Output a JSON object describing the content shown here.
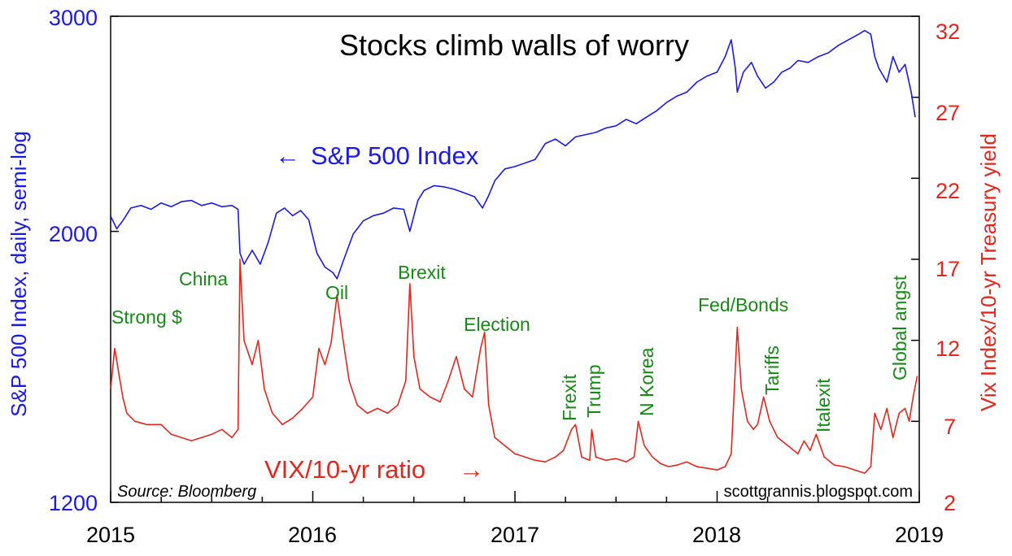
{
  "chart_data": {
    "type": "line",
    "title": "Stocks climb walls of worry",
    "xlabel": "",
    "x_ticks": [
      "2015",
      "2016",
      "2017",
      "2018",
      "2019"
    ],
    "x_range": [
      2015,
      2019
    ],
    "left_axis": {
      "label": "S&P 500 Index, daily, semi-log",
      "scale": "log",
      "range": [
        1200,
        3000
      ],
      "ticks": [
        "3000",
        "2000",
        "1200"
      ],
      "tick_values": [
        3000,
        2000,
        1200
      ]
    },
    "right_axis": {
      "label": "Vix Index/10-yr Treasury yield",
      "scale": "linear",
      "range": [
        2,
        32
      ],
      "ticks": [
        "32",
        "27",
        "22",
        "17",
        "12",
        "7",
        "2"
      ],
      "tick_values": [
        32,
        27,
        22,
        17,
        12,
        7,
        2
      ]
    },
    "series": [
      {
        "name": "S&P 500 Index",
        "label": "S&P 500 Index",
        "arrow": "←",
        "axis": "left",
        "color": "#1a1ae6",
        "points": [
          [
            2015.0,
            2058
          ],
          [
            2015.03,
            2010
          ],
          [
            2015.06,
            2040
          ],
          [
            2015.1,
            2090
          ],
          [
            2015.15,
            2100
          ],
          [
            2015.2,
            2085
          ],
          [
            2015.25,
            2110
          ],
          [
            2015.3,
            2095
          ],
          [
            2015.35,
            2115
          ],
          [
            2015.4,
            2120
          ],
          [
            2015.45,
            2100
          ],
          [
            2015.5,
            2110
          ],
          [
            2015.55,
            2095
          ],
          [
            2015.6,
            2100
          ],
          [
            2015.63,
            2085
          ],
          [
            2015.64,
            1920
          ],
          [
            2015.66,
            1880
          ],
          [
            2015.7,
            1930
          ],
          [
            2015.74,
            1880
          ],
          [
            2015.78,
            1960
          ],
          [
            2015.82,
            2070
          ],
          [
            2015.86,
            2090
          ],
          [
            2015.9,
            2060
          ],
          [
            2015.94,
            2080
          ],
          [
            2015.98,
            2044
          ],
          [
            2016.02,
            1920
          ],
          [
            2016.06,
            1870
          ],
          [
            2016.1,
            1850
          ],
          [
            2016.12,
            1829
          ],
          [
            2016.15,
            1890
          ],
          [
            2016.2,
            1990
          ],
          [
            2016.25,
            2040
          ],
          [
            2016.3,
            2060
          ],
          [
            2016.35,
            2070
          ],
          [
            2016.4,
            2090
          ],
          [
            2016.45,
            2085
          ],
          [
            2016.48,
            2000
          ],
          [
            2016.52,
            2120
          ],
          [
            2016.55,
            2160
          ],
          [
            2016.6,
            2180
          ],
          [
            2016.65,
            2175
          ],
          [
            2016.7,
            2165
          ],
          [
            2016.75,
            2150
          ],
          [
            2016.8,
            2135
          ],
          [
            2016.84,
            2090
          ],
          [
            2016.87,
            2140
          ],
          [
            2016.9,
            2200
          ],
          [
            2016.95,
            2250
          ],
          [
            2017.0,
            2260
          ],
          [
            2017.1,
            2290
          ],
          [
            2017.15,
            2360
          ],
          [
            2017.2,
            2380
          ],
          [
            2017.25,
            2350
          ],
          [
            2017.3,
            2390
          ],
          [
            2017.35,
            2400
          ],
          [
            2017.4,
            2410
          ],
          [
            2017.45,
            2430
          ],
          [
            2017.5,
            2440
          ],
          [
            2017.55,
            2470
          ],
          [
            2017.6,
            2450
          ],
          [
            2017.65,
            2480
          ],
          [
            2017.7,
            2510
          ],
          [
            2017.75,
            2550
          ],
          [
            2017.8,
            2580
          ],
          [
            2017.85,
            2600
          ],
          [
            2017.9,
            2650
          ],
          [
            2017.95,
            2680
          ],
          [
            2018.0,
            2700
          ],
          [
            2018.04,
            2780
          ],
          [
            2018.07,
            2870
          ],
          [
            2018.09,
            2720
          ],
          [
            2018.1,
            2600
          ],
          [
            2018.13,
            2700
          ],
          [
            2018.17,
            2750
          ],
          [
            2018.2,
            2680
          ],
          [
            2018.24,
            2620
          ],
          [
            2018.28,
            2650
          ],
          [
            2018.32,
            2700
          ],
          [
            2018.36,
            2720
          ],
          [
            2018.4,
            2760
          ],
          [
            2018.45,
            2750
          ],
          [
            2018.5,
            2780
          ],
          [
            2018.55,
            2800
          ],
          [
            2018.6,
            2840
          ],
          [
            2018.65,
            2870
          ],
          [
            2018.7,
            2900
          ],
          [
            2018.73,
            2920
          ],
          [
            2018.76,
            2900
          ],
          [
            2018.78,
            2780
          ],
          [
            2018.8,
            2720
          ],
          [
            2018.84,
            2650
          ],
          [
            2018.87,
            2780
          ],
          [
            2018.9,
            2700
          ],
          [
            2018.93,
            2740
          ],
          [
            2018.96,
            2600
          ],
          [
            2018.98,
            2480
          ]
        ]
      },
      {
        "name": "VIX/10-yr ratio",
        "label": "VIX/10-yr ratio",
        "arrow": "→",
        "axis": "right",
        "color": "#e3271c",
        "points": [
          [
            2015.0,
            9.0
          ],
          [
            2015.02,
            11.5
          ],
          [
            2015.04,
            10.0
          ],
          [
            2015.06,
            8.5
          ],
          [
            2015.08,
            7.5
          ],
          [
            2015.12,
            7.0
          ],
          [
            2015.18,
            6.8
          ],
          [
            2015.25,
            6.8
          ],
          [
            2015.3,
            6.2
          ],
          [
            2015.35,
            6.0
          ],
          [
            2015.4,
            5.8
          ],
          [
            2015.45,
            6.0
          ],
          [
            2015.5,
            6.2
          ],
          [
            2015.55,
            6.5
          ],
          [
            2015.6,
            6.0
          ],
          [
            2015.63,
            6.5
          ],
          [
            2015.64,
            17.0
          ],
          [
            2015.66,
            12.0
          ],
          [
            2015.7,
            10.5
          ],
          [
            2015.73,
            12.0
          ],
          [
            2015.76,
            9.0
          ],
          [
            2015.8,
            7.5
          ],
          [
            2015.85,
            6.8
          ],
          [
            2015.9,
            7.2
          ],
          [
            2015.95,
            7.8
          ],
          [
            2016.0,
            8.5
          ],
          [
            2016.03,
            11.5
          ],
          [
            2016.06,
            10.5
          ],
          [
            2016.09,
            11.8
          ],
          [
            2016.12,
            14.8
          ],
          [
            2016.15,
            12.0
          ],
          [
            2016.18,
            9.5
          ],
          [
            2016.22,
            8.0
          ],
          [
            2016.27,
            7.5
          ],
          [
            2016.32,
            7.8
          ],
          [
            2016.37,
            7.5
          ],
          [
            2016.42,
            8.0
          ],
          [
            2016.46,
            9.5
          ],
          [
            2016.48,
            15.5
          ],
          [
            2016.5,
            11.0
          ],
          [
            2016.53,
            9.0
          ],
          [
            2016.58,
            8.5
          ],
          [
            2016.63,
            8.2
          ],
          [
            2016.67,
            9.5
          ],
          [
            2016.71,
            11.0
          ],
          [
            2016.75,
            9.0
          ],
          [
            2016.79,
            8.5
          ],
          [
            2016.83,
            11.5
          ],
          [
            2016.85,
            12.5
          ],
          [
            2016.87,
            8.0
          ],
          [
            2016.9,
            6.0
          ],
          [
            2016.95,
            5.5
          ],
          [
            2017.0,
            5.0
          ],
          [
            2017.05,
            4.8
          ],
          [
            2017.1,
            4.6
          ],
          [
            2017.15,
            4.5
          ],
          [
            2017.2,
            4.8
          ],
          [
            2017.24,
            5.2
          ],
          [
            2017.28,
            6.5
          ],
          [
            2017.3,
            6.8
          ],
          [
            2017.33,
            4.8
          ],
          [
            2017.37,
            4.6
          ],
          [
            2017.38,
            6.5
          ],
          [
            2017.4,
            4.8
          ],
          [
            2017.45,
            4.6
          ],
          [
            2017.5,
            4.7
          ],
          [
            2017.55,
            4.5
          ],
          [
            2017.59,
            4.8
          ],
          [
            2017.61,
            7.0
          ],
          [
            2017.64,
            5.5
          ],
          [
            2017.68,
            4.8
          ],
          [
            2017.72,
            4.4
          ],
          [
            2017.76,
            4.2
          ],
          [
            2017.8,
            4.3
          ],
          [
            2017.85,
            4.5
          ],
          [
            2017.9,
            4.2
          ],
          [
            2017.95,
            4.1
          ],
          [
            2018.0,
            4.0
          ],
          [
            2018.04,
            4.2
          ],
          [
            2018.07,
            5.0
          ],
          [
            2018.1,
            12.8
          ],
          [
            2018.12,
            9.0
          ],
          [
            2018.15,
            7.0
          ],
          [
            2018.18,
            6.5
          ],
          [
            2018.2,
            6.8
          ],
          [
            2018.23,
            8.5
          ],
          [
            2018.26,
            7.0
          ],
          [
            2018.3,
            6.0
          ],
          [
            2018.35,
            5.5
          ],
          [
            2018.4,
            5.0
          ],
          [
            2018.43,
            5.8
          ],
          [
            2018.46,
            5.2
          ],
          [
            2018.49,
            6.2
          ],
          [
            2018.53,
            4.8
          ],
          [
            2018.58,
            4.3
          ],
          [
            2018.63,
            4.2
          ],
          [
            2018.68,
            4.0
          ],
          [
            2018.73,
            3.8
          ],
          [
            2018.76,
            4.2
          ],
          [
            2018.78,
            7.5
          ],
          [
            2018.81,
            6.5
          ],
          [
            2018.84,
            7.8
          ],
          [
            2018.87,
            6.0
          ],
          [
            2018.9,
            7.5
          ],
          [
            2018.93,
            7.8
          ],
          [
            2018.95,
            7.0
          ],
          [
            2018.97,
            8.5
          ],
          [
            2018.99,
            9.8
          ]
        ]
      }
    ],
    "annotations": [
      "Strong $",
      "China",
      "Oil",
      "Brexit",
      "Election",
      "Frexit",
      "Trump",
      "N Korea",
      "Fed/Bonds",
      "Tariffs",
      "Italexit",
      "Global angst"
    ],
    "source": "Source: Bloomberg",
    "credit": "scottgrannis.blogspot.com",
    "colors": {
      "left": "#1a1ae6",
      "right": "#e3271c",
      "events": "#158a15"
    }
  }
}
